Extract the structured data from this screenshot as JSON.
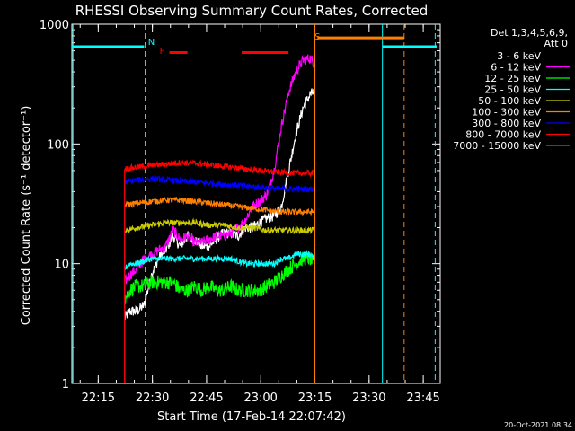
{
  "chart_data": {
    "type": "line",
    "title": "RHESSI Observing Summary Count Rates, Corrected",
    "xlabel": "Start Time (17-Feb-14 22:07:42)",
    "ylabel": "Corrected Count Rate (s⁻¹ detector⁻¹)",
    "y_scale": "log",
    "ylim": [
      1,
      1000
    ],
    "xlim_minutes_after_22:07:42": [
      0,
      102
    ],
    "x_ticks": [
      {
        "label": "22:15",
        "minute": 7.3
      },
      {
        "label": "22:30",
        "minute": 22.3
      },
      {
        "label": "22:45",
        "minute": 37.3
      },
      {
        "label": "23:00",
        "minute": 52.3
      },
      {
        "label": "23:15",
        "minute": 67.3
      },
      {
        "label": "23:30",
        "minute": 82.3
      },
      {
        "label": "23:45",
        "minute": 97.3
      }
    ],
    "y_ticks": [
      {
        "label": "1",
        "value": 1
      },
      {
        "label": "10",
        "value": 10
      },
      {
        "label": "100",
        "value": 100
      },
      {
        "label": "1000",
        "value": 1000
      }
    ],
    "legend_header": [
      "Det 1,3,4,5,6,9,",
      "Att 0"
    ],
    "legend_placement": "right",
    "timestamp": "20-Oct-2021 08:34",
    "annotations": [
      {
        "label": "N",
        "color": "#00ffff",
        "minute": 22
      },
      {
        "label": "F",
        "color": "#ff0000",
        "minute": 25
      },
      {
        "label": "S",
        "color": "#ff8000",
        "minute": 68
      }
    ],
    "flags": [
      {
        "name": "night",
        "color": "#00ffff",
        "value": 650,
        "segments": [
          [
            0,
            20
          ],
          [
            86,
            101
          ]
        ]
      },
      {
        "name": "flare",
        "color": "#ff0000",
        "value": 580,
        "segments": [
          [
            27,
            32
          ],
          [
            47,
            60
          ]
        ]
      },
      {
        "name": "saa",
        "color": "#ff8000",
        "value": 770,
        "segments": [
          [
            68,
            92
          ]
        ]
      }
    ],
    "vlines": [
      {
        "minute": 20.3,
        "color": "#00ffff",
        "style": "dashed"
      },
      {
        "minute": 86.0,
        "color": "#00ffff",
        "style": "solid"
      },
      {
        "minute": 100.6,
        "color": "#00ffff",
        "style": "dashed"
      },
      {
        "minute": 67.3,
        "color": "#ff8000",
        "style": "solid"
      },
      {
        "minute": 92.0,
        "color": "#ff8000",
        "style": "dashed"
      },
      {
        "minute": 0.3,
        "color": "#00ffff",
        "style": "solid"
      }
    ],
    "series": [
      {
        "name": "3 - 6 keV",
        "color": "#ffffff",
        "legend_color": "#000000",
        "points": [
          [
            14.6,
            3.5
          ],
          [
            16,
            4
          ],
          [
            18,
            4
          ],
          [
            20,
            4.5
          ],
          [
            22,
            8
          ],
          [
            24,
            11
          ],
          [
            26,
            13
          ],
          [
            28,
            17
          ],
          [
            30,
            14
          ],
          [
            32,
            17
          ],
          [
            34,
            16
          ],
          [
            36,
            14
          ],
          [
            38,
            14
          ],
          [
            40,
            16
          ],
          [
            42,
            18
          ],
          [
            44,
            18
          ],
          [
            46,
            17
          ],
          [
            48,
            20
          ],
          [
            50,
            20
          ],
          [
            52,
            22
          ],
          [
            54,
            24
          ],
          [
            56,
            25
          ],
          [
            58,
            30
          ],
          [
            60,
            60
          ],
          [
            62,
            120
          ],
          [
            64,
            200
          ],
          [
            66,
            260
          ],
          [
            67,
            270
          ]
        ]
      },
      {
        "name": "6 - 12 keV",
        "color": "#ff00ff",
        "points": [
          [
            14.6,
            7
          ],
          [
            16,
            8
          ],
          [
            18,
            9
          ],
          [
            20,
            11
          ],
          [
            22,
            12
          ],
          [
            24,
            13
          ],
          [
            26,
            14
          ],
          [
            28,
            19
          ],
          [
            30,
            16
          ],
          [
            32,
            17
          ],
          [
            34,
            15
          ],
          [
            36,
            15
          ],
          [
            38,
            16
          ],
          [
            40,
            17
          ],
          [
            42,
            17
          ],
          [
            44,
            18
          ],
          [
            46,
            20
          ],
          [
            48,
            23
          ],
          [
            50,
            30
          ],
          [
            52,
            33
          ],
          [
            54,
            38
          ],
          [
            56,
            60
          ],
          [
            58,
            140
          ],
          [
            60,
            270
          ],
          [
            62,
            400
          ],
          [
            64,
            500
          ],
          [
            66,
            520
          ],
          [
            67,
            480
          ]
        ]
      },
      {
        "name": "12 - 25 keV",
        "color": "#00ff00",
        "points": [
          [
            14.6,
            5
          ],
          [
            16,
            6
          ],
          [
            18,
            6.5
          ],
          [
            20,
            6.5
          ],
          [
            22,
            7
          ],
          [
            24,
            7
          ],
          [
            26,
            7
          ],
          [
            28,
            7
          ],
          [
            30,
            6
          ],
          [
            32,
            6
          ],
          [
            34,
            6.5
          ],
          [
            36,
            6
          ],
          [
            38,
            6.5
          ],
          [
            40,
            6
          ],
          [
            42,
            6
          ],
          [
            44,
            6.5
          ],
          [
            46,
            6
          ],
          [
            48,
            6
          ],
          [
            50,
            6
          ],
          [
            52,
            6
          ],
          [
            54,
            6.5
          ],
          [
            56,
            7
          ],
          [
            58,
            8
          ],
          [
            60,
            9
          ],
          [
            62,
            10
          ],
          [
            64,
            11
          ],
          [
            66,
            11
          ],
          [
            67,
            10
          ]
        ]
      },
      {
        "name": "25 - 50 keV",
        "color": "#00ffff",
        "points": [
          [
            14.6,
            9
          ],
          [
            16,
            10
          ],
          [
            18,
            10
          ],
          [
            20,
            10.5
          ],
          [
            22,
            11
          ],
          [
            24,
            11
          ],
          [
            26,
            11
          ],
          [
            28,
            11
          ],
          [
            30,
            11
          ],
          [
            32,
            11
          ],
          [
            34,
            11
          ],
          [
            36,
            11
          ],
          [
            38,
            11
          ],
          [
            40,
            11
          ],
          [
            42,
            11
          ],
          [
            44,
            11
          ],
          [
            46,
            10.5
          ],
          [
            48,
            10
          ],
          [
            50,
            10
          ],
          [
            52,
            10
          ],
          [
            54,
            10
          ],
          [
            56,
            10
          ],
          [
            58,
            11
          ],
          [
            60,
            11
          ],
          [
            62,
            12
          ],
          [
            64,
            12
          ],
          [
            66,
            12
          ],
          [
            67,
            11
          ]
        ]
      },
      {
        "name": "50 - 100 keV",
        "color": "#cccc00",
        "points": [
          [
            14.6,
            19
          ],
          [
            18,
            20
          ],
          [
            22,
            21
          ],
          [
            26,
            22
          ],
          [
            30,
            22
          ],
          [
            34,
            22
          ],
          [
            38,
            21
          ],
          [
            42,
            21
          ],
          [
            46,
            20
          ],
          [
            50,
            20
          ],
          [
            54,
            19
          ],
          [
            58,
            19
          ],
          [
            62,
            19
          ],
          [
            66,
            19
          ],
          [
            67,
            19
          ]
        ]
      },
      {
        "name": "100 - 300 keV",
        "color": "#ff8000",
        "points": [
          [
            14.6,
            31
          ],
          [
            18,
            32
          ],
          [
            22,
            33
          ],
          [
            26,
            34
          ],
          [
            30,
            34
          ],
          [
            34,
            33
          ],
          [
            38,
            32
          ],
          [
            42,
            31
          ],
          [
            46,
            30
          ],
          [
            50,
            29
          ],
          [
            54,
            28
          ],
          [
            58,
            27
          ],
          [
            62,
            27
          ],
          [
            66,
            27
          ],
          [
            67,
            27
          ]
        ]
      },
      {
        "name": "300 - 800 keV",
        "color": "#0000ff",
        "points": [
          [
            14.6,
            48
          ],
          [
            18,
            50
          ],
          [
            22,
            51
          ],
          [
            26,
            50
          ],
          [
            30,
            49
          ],
          [
            34,
            48
          ],
          [
            38,
            47
          ],
          [
            42,
            46
          ],
          [
            46,
            45
          ],
          [
            50,
            44
          ],
          [
            54,
            43
          ],
          [
            58,
            42
          ],
          [
            62,
            42
          ],
          [
            66,
            42
          ],
          [
            67,
            42
          ]
        ]
      },
      {
        "name": "800 - 7000 keV",
        "color": "#ff0000",
        "points": [
          [
            14.6,
            62
          ],
          [
            18,
            64
          ],
          [
            22,
            66
          ],
          [
            26,
            68
          ],
          [
            30,
            70
          ],
          [
            34,
            69
          ],
          [
            38,
            67
          ],
          [
            42,
            65
          ],
          [
            46,
            63
          ],
          [
            50,
            61
          ],
          [
            54,
            59
          ],
          [
            58,
            58
          ],
          [
            62,
            57
          ],
          [
            66,
            57
          ],
          [
            67,
            57
          ]
        ]
      },
      {
        "name": "7000 - 15000 keV",
        "color": "#808000",
        "points": []
      }
    ]
  }
}
